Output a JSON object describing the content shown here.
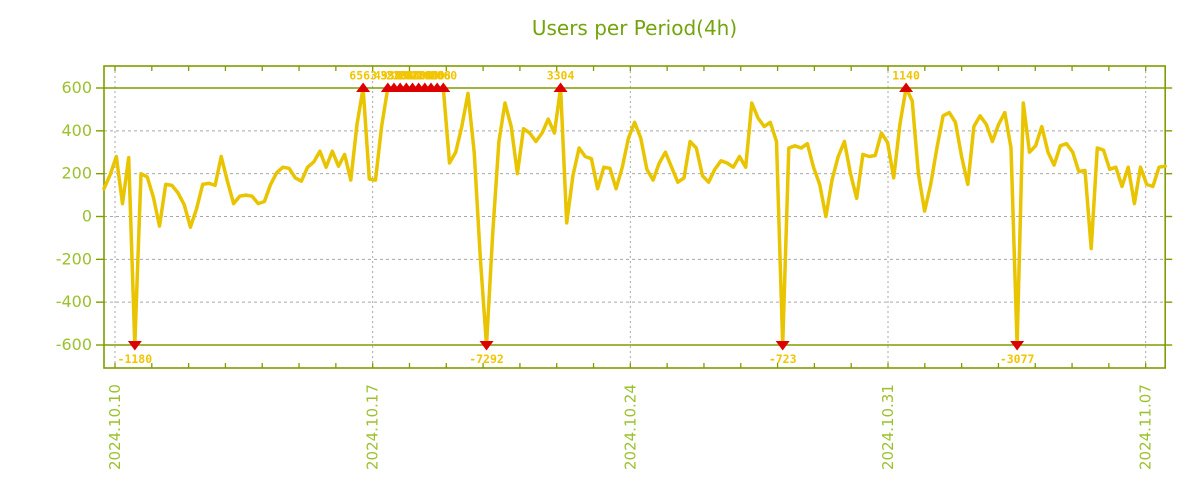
{
  "title": "Users per Period(4h)",
  "colors": {
    "title": "#74a40b",
    "tick_label": "#9bc12c",
    "axis_line": "#7f9d00",
    "grid": "#a8a8a8",
    "series": "#e9c400",
    "annotation": "#f2c500",
    "marker": "#dd0000"
  },
  "chart_data": {
    "type": "line",
    "title": "Users per Period(4h)",
    "xlabel": "",
    "ylabel": "",
    "y_ticks": [
      600,
      400,
      200,
      0,
      -200,
      -400,
      -600
    ],
    "ylim": [
      -700,
      700
    ],
    "clip_level": 600,
    "grid": "dashed horizontal at 400/200/0/-200/-400, solid olive lines at +600 and -600, weekly dashed verticals, daily edge ticks",
    "legend_position": "none",
    "x_tick_labels": [
      "2024.10.10",
      "2024.10.17",
      "2024.10.24",
      "2024.10.31",
      "2024.11.07"
    ],
    "step_hours": 4,
    "annotated_extremes": [
      -1180,
      6563,
      -7292,
      3304,
      -723,
      1140,
      -3077
    ],
    "values": [
      130,
      195,
      280,
      60,
      275,
      -1180,
      200,
      185,
      90,
      -45,
      150,
      145,
      110,
      55,
      -50,
      35,
      150,
      155,
      145,
      280,
      165,
      60,
      95,
      100,
      95,
      60,
      70,
      150,
      205,
      230,
      225,
      180,
      165,
      230,
      255,
      305,
      230,
      305,
      235,
      290,
      170,
      430,
      6563,
      175,
      170,
      420,
      4934,
      3583,
      2168,
      1964,
      2060,
      3168,
      2864,
      1960,
      4068,
      2060,
      250,
      300,
      420,
      575,
      300,
      -200,
      -7292,
      -80,
      350,
      530,
      420,
      200,
      410,
      390,
      350,
      390,
      455,
      390,
      3304,
      -30,
      190,
      320,
      280,
      270,
      130,
      230,
      225,
      130,
      230,
      365,
      440,
      365,
      220,
      170,
      250,
      300,
      230,
      160,
      180,
      350,
      320,
      190,
      160,
      220,
      260,
      250,
      230,
      280,
      230,
      530,
      460,
      420,
      440,
      350,
      -723,
      320,
      330,
      320,
      340,
      230,
      150,
      0,
      170,
      280,
      350,
      200,
      85,
      290,
      280,
      285,
      390,
      345,
      180,
      430,
      1140,
      540,
      200,
      25,
      150,
      320,
      470,
      485,
      440,
      280,
      150,
      420,
      470,
      430,
      350,
      430,
      485,
      320,
      -3077,
      530,
      300,
      330,
      420,
      300,
      240,
      330,
      340,
      300,
      210,
      215,
      -150,
      320,
      310,
      220,
      230,
      140,
      230,
      60,
      230,
      150,
      140,
      230,
      235
    ]
  }
}
